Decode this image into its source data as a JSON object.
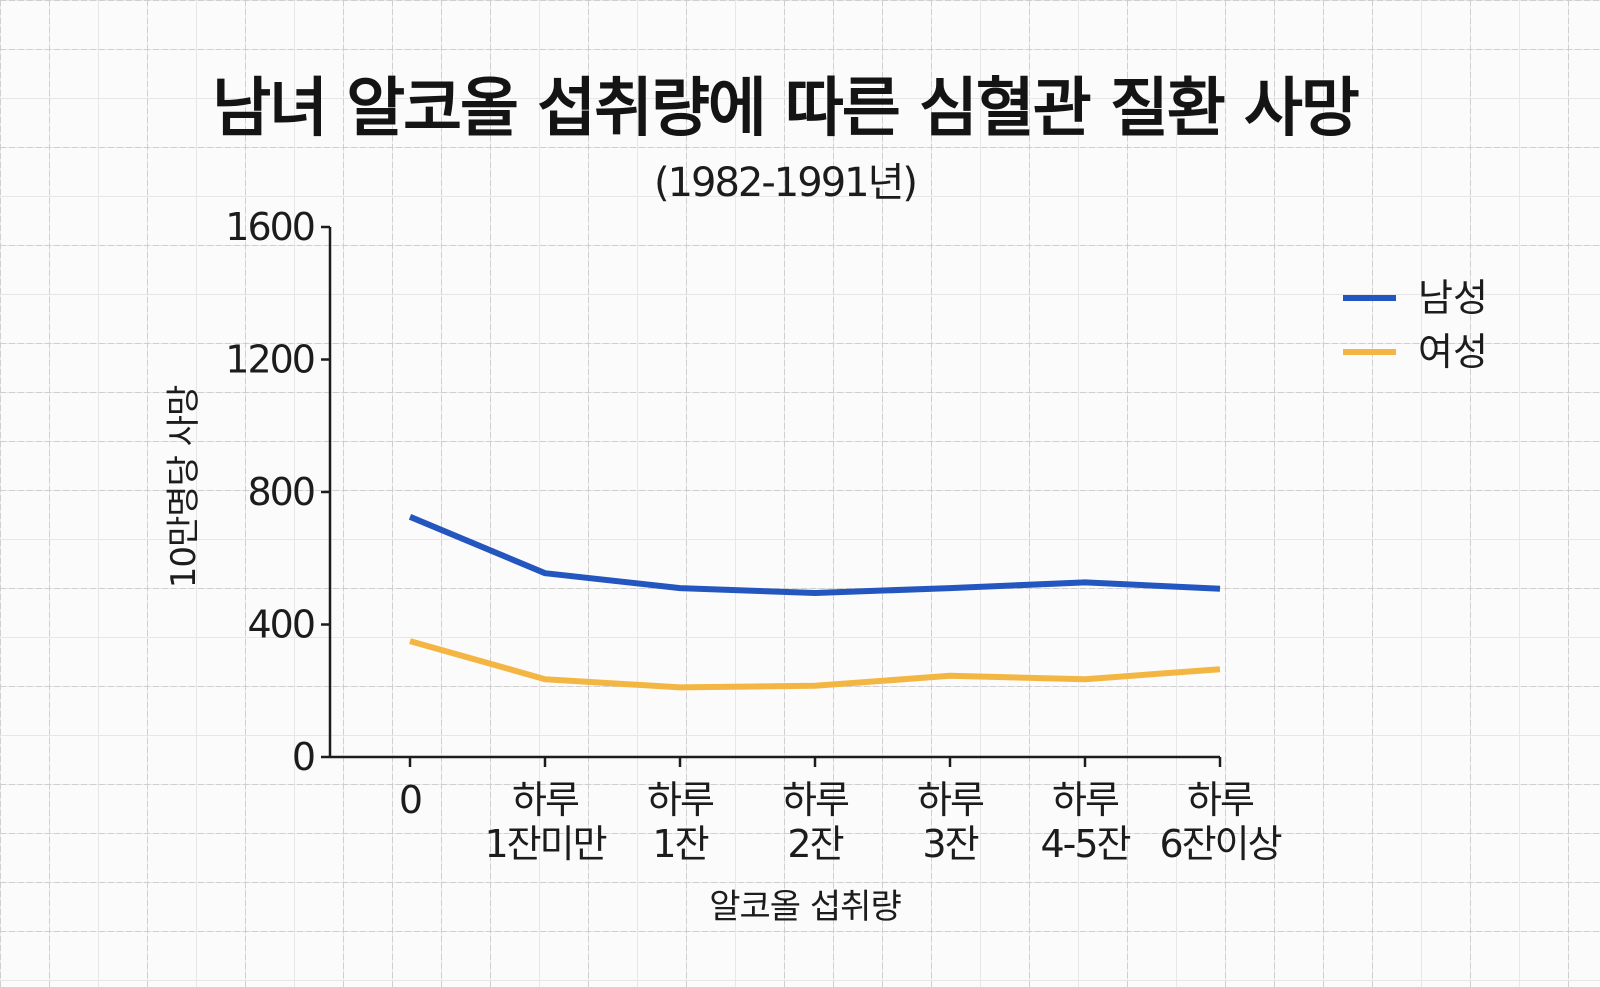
{
  "chart_data": {
    "type": "line",
    "title": "남녀 알코올 섭취량에 따른 심혈관 질환 사망",
    "subtitle": "(1982-1991년)",
    "xlabel": "알코올 섭취량",
    "ylabel": "10만명당 사망",
    "categories": [
      [
        "0"
      ],
      [
        "하루",
        "1잔미만"
      ],
      [
        "하루",
        "1잔"
      ],
      [
        "하루",
        "2잔"
      ],
      [
        "하루",
        "3잔"
      ],
      [
        "하루",
        "4-5잔"
      ],
      [
        "하루",
        "6잔이상"
      ]
    ],
    "ylim": [
      0,
      1600
    ],
    "yticks": [
      0,
      400,
      800,
      1200,
      1600
    ],
    "grid": false,
    "legend_position": "top-right",
    "series": [
      {
        "name": "남성",
        "color": "#2456bf",
        "values": [
          725,
          555,
          510,
          495,
          510,
          527,
          508
        ]
      },
      {
        "name": "여성",
        "color": "#f4b642",
        "values": [
          350,
          235,
          210,
          215,
          245,
          235,
          265
        ]
      }
    ]
  }
}
